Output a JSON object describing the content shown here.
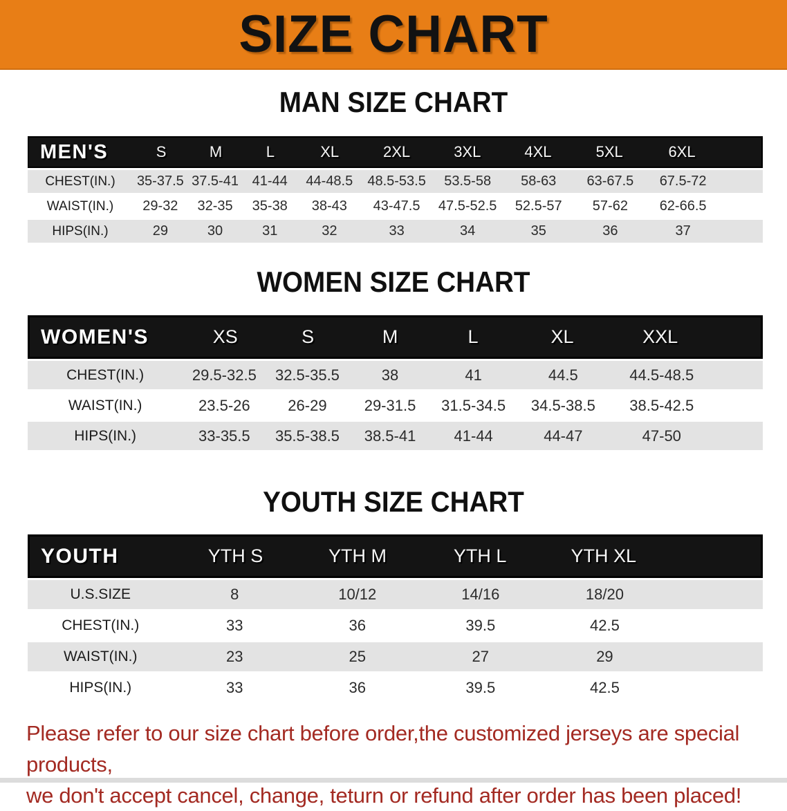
{
  "banner": {
    "title": "SIZE CHART",
    "background_color": "#E87E16",
    "text_color": "#121212"
  },
  "sections": {
    "men": {
      "heading": "MAN SIZE CHART",
      "table": {
        "header": [
          "MEN'S",
          "S",
          "M",
          "L",
          "XL",
          "2XL",
          "3XL",
          "4XL",
          "5XL",
          "6XL"
        ],
        "rows": [
          [
            "CHEST(IN.)",
            "35-37.5",
            "37.5-41",
            "41-44",
            "44-48.5",
            "48.5-53.5",
            "53.5-58",
            "58-63",
            "63-67.5",
            "67.5-72"
          ],
          [
            "WAIST(IN.)",
            "29-32",
            "32-35",
            "35-38",
            "38-43",
            "43-47.5",
            "47.5-52.5",
            "52.5-57",
            "57-62",
            "62-66.5"
          ],
          [
            "HIPS(IN.)",
            "29",
            "30",
            "31",
            "32",
            "33",
            "34",
            "35",
            "36",
            "37"
          ]
        ]
      }
    },
    "women": {
      "heading": "WOMEN SIZE CHART",
      "table": {
        "header": [
          "WOMEN'S",
          "XS",
          "S",
          "M",
          "L",
          "XL",
          "XXL"
        ],
        "rows": [
          [
            "CHEST(IN.)",
            "29.5-32.5",
            "32.5-35.5",
            "38",
            "41",
            "44.5",
            "44.5-48.5"
          ],
          [
            "WAIST(IN.)",
            "23.5-26",
            "26-29",
            "29-31.5",
            "31.5-34.5",
            "34.5-38.5",
            "38.5-42.5"
          ],
          [
            "HIPS(IN.)",
            "33-35.5",
            "35.5-38.5",
            "38.5-41",
            "41-44",
            "44-47",
            "47-50"
          ]
        ]
      }
    },
    "youth": {
      "heading": "YOUTH SIZE CHART",
      "table": {
        "header": [
          "YOUTH",
          "YTH S",
          "YTH M",
          "YTH L",
          "YTH XL"
        ],
        "rows": [
          [
            "U.S.SIZE",
            "8",
            "10/12",
            "14/16",
            "18/20"
          ],
          [
            "CHEST(IN.)",
            "33",
            "36",
            "39.5",
            "42.5"
          ],
          [
            "WAIST(IN.)",
            "23",
            "25",
            "27",
            "29"
          ],
          [
            "HIPS(IN.)",
            "33",
            "36",
            "39.5",
            "42.5"
          ]
        ]
      }
    }
  },
  "disclaimer": {
    "line1": "Please refer to our size chart before order,the customized jerseys are special products,",
    "line2": "we don't accept cancel, change, teturn or refund after order has been placed!",
    "text_color": "#A32A22"
  },
  "colors": {
    "header_row_bg": "#141414",
    "stripe_gray": "#E3E3E3",
    "stripe_white": "#FFFFFF"
  }
}
